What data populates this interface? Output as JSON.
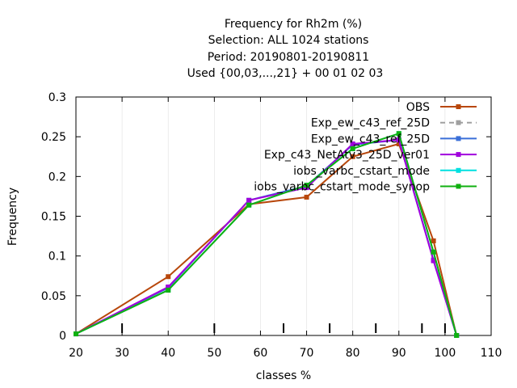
{
  "chart_data": {
    "type": "line",
    "title": [
      "Frequency  for Rh2m (%)",
      "Selection: ALL   1024 stations",
      "Period: 20190801-20190811",
      "Used {00,03,...,21} + 00 01 02 03"
    ],
    "xlabel": "classes %",
    "ylabel": "Frequency",
    "xlim": [
      20,
      110
    ],
    "ylim": [
      0,
      0.3
    ],
    "xticks": [
      20,
      30,
      40,
      50,
      60,
      70,
      80,
      90,
      100,
      110
    ],
    "yticks": [
      0,
      0.05,
      0.1,
      0.15,
      0.2,
      0.25,
      0.3
    ],
    "ytick_labels": [
      "0",
      "0.05",
      "0.1",
      "0.15",
      "0.2",
      "0.25",
      "0.3"
    ],
    "class_boundaries": [
      30,
      50,
      65,
      75,
      85,
      95,
      100
    ],
    "legend_position": "top-right",
    "series": [
      {
        "name": "OBS",
        "color": "#b8470b",
        "dashed": false,
        "marker": "circle",
        "x": [
          20,
          40,
          57.5,
          70,
          80,
          90,
          97.5,
          102.5
        ],
        "y": [
          0.002,
          0.074,
          0.165,
          0.174,
          0.225,
          0.241,
          0.119,
          0.0
        ]
      },
      {
        "name": "Exp_ew_c43_ref_25D",
        "color": "#a0a0a0",
        "dashed": true,
        "marker": "circle",
        "x": [
          20,
          40,
          57.5,
          70,
          80,
          90,
          97.5,
          102.5
        ],
        "y": [
          0.002,
          0.06,
          0.17,
          0.188,
          0.24,
          0.246,
          0.095,
          0.0
        ]
      },
      {
        "name": "Exp_ew_c43_ref_25D",
        "color": "#3a6fd8",
        "dashed": false,
        "marker": "circle",
        "x": [
          20,
          40,
          57.5,
          70,
          80,
          90,
          97.5,
          102.5
        ],
        "y": [
          0.002,
          0.06,
          0.17,
          0.188,
          0.24,
          0.246,
          0.095,
          0.0
        ]
      },
      {
        "name": "Exp_c43_NetAtv3_25D_ver01",
        "color": "#a000dd",
        "dashed": false,
        "marker": "circle",
        "x": [
          20,
          40,
          57.5,
          70,
          80,
          90,
          97.5,
          102.5
        ],
        "y": [
          0.002,
          0.061,
          0.17,
          0.186,
          0.241,
          0.246,
          0.094,
          0.0
        ]
      },
      {
        "name": "iobs_varbc_cstart_mode",
        "color": "#00e0e0",
        "dashed": false,
        "marker": "circle",
        "x": [
          20,
          40,
          57.5,
          70,
          80,
          90,
          97.5,
          102.5
        ],
        "y": [
          0.002,
          0.057,
          0.164,
          0.189,
          0.235,
          0.254,
          0.105,
          0.0
        ]
      },
      {
        "name": "iobs_varbc_cstart_mode_synop",
        "color": "#10b010",
        "dashed": false,
        "marker": "circle",
        "x": [
          20,
          40,
          57.5,
          70,
          80,
          90,
          97.5,
          102.5
        ],
        "y": [
          0.002,
          0.057,
          0.164,
          0.189,
          0.235,
          0.254,
          0.105,
          0.0
        ]
      }
    ],
    "legend_labels": [
      "OBS",
      "Exp_ew_c43_ref_25D",
      "Exp_ew_c43_ref_25D",
      "Exp_c43_NetAtv3_25D_ver01",
      "iobs_varbc_cstart_mode",
      "iobs_varbc_cstart_mode_synop"
    ]
  }
}
